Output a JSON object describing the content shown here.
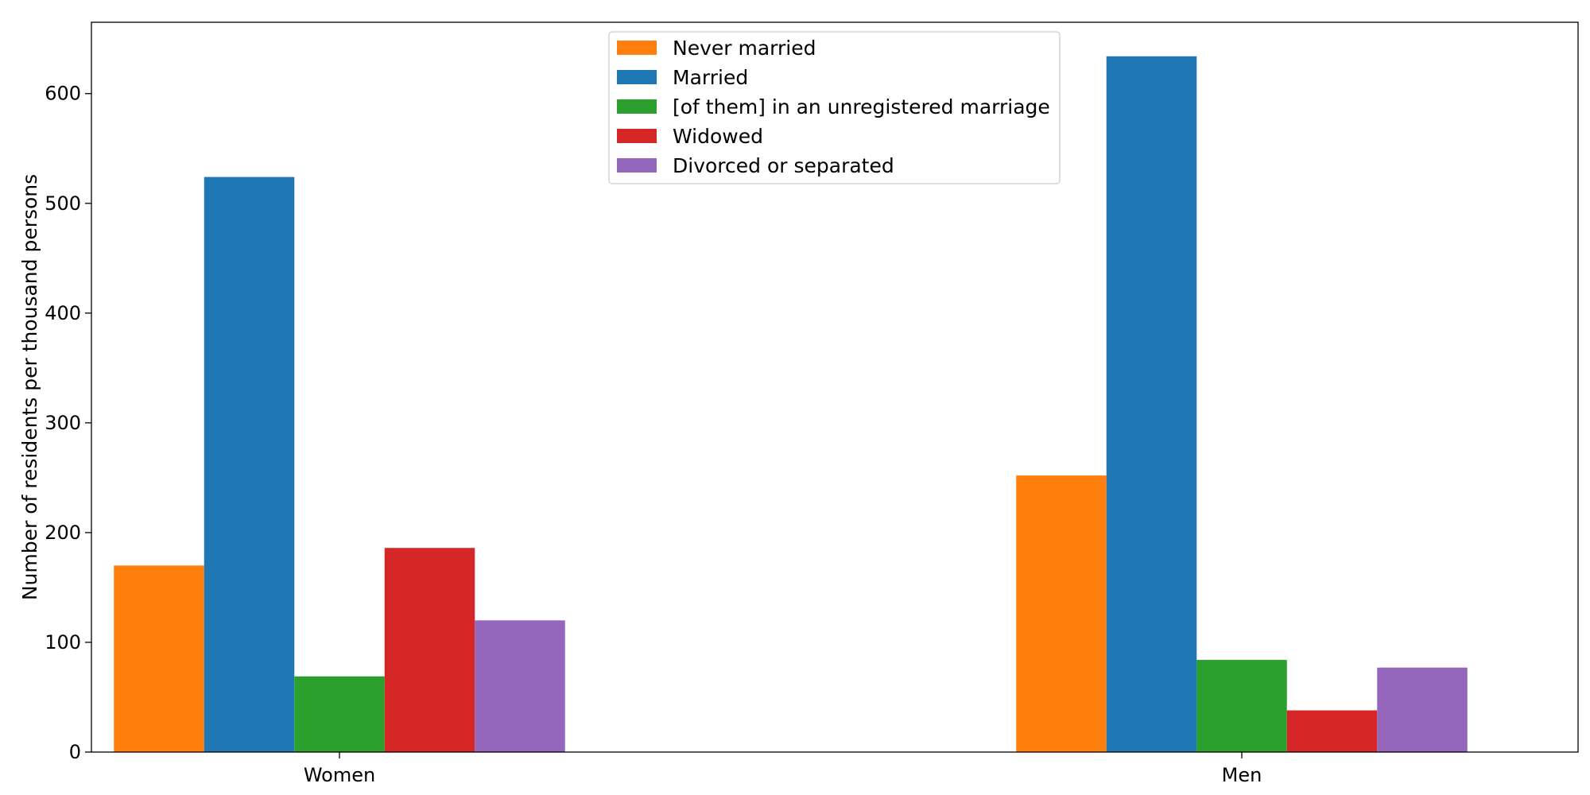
{
  "chart_data": {
    "type": "bar",
    "title": "",
    "xlabel": "",
    "ylabel": "Number of residents per thousand persons",
    "categories": [
      "Women",
      "Men"
    ],
    "series": [
      {
        "name": "Never married",
        "values": [
          170,
          252
        ],
        "color": "#ff7f0e"
      },
      {
        "name": "Married",
        "values": [
          524,
          634
        ],
        "color": "#1f77b4"
      },
      {
        "name": "[of them] in an unregistered marriage",
        "values": [
          69,
          84
        ],
        "color": "#2ca02c"
      },
      {
        "name": "Widowed",
        "values": [
          186,
          38
        ],
        "color": "#d62728"
      },
      {
        "name": "Divorced or separated",
        "values": [
          120,
          77
        ],
        "color": "#9467bd"
      }
    ],
    "ylim": [
      0,
      665
    ],
    "yticks": [
      0,
      100,
      200,
      300,
      400,
      500,
      600
    ],
    "grid": false,
    "legend_position": "top-center"
  }
}
